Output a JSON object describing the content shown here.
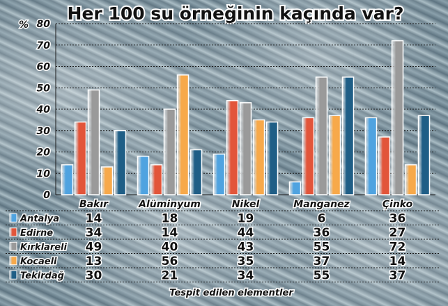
{
  "chart_data": {
    "type": "bar",
    "title": "Her 100 su örneğinin kaçında var?",
    "ylabel": "%",
    "xlabel": "Tespit edilen elementler",
    "ylim": [
      0,
      80
    ],
    "yticks": [
      "0",
      "10",
      "20",
      "30",
      "40",
      "50",
      "60",
      "70",
      "80"
    ],
    "grid": true,
    "categories": [
      "Bakır",
      "Alüminyum",
      "Nikel",
      "Manganez",
      "Çinko"
    ],
    "series": [
      {
        "name": "Antalya",
        "color": "#4fa3e0",
        "values": [
          14,
          18,
          19,
          6,
          36
        ]
      },
      {
        "name": "Edirne",
        "color": "#e2553a",
        "values": [
          34,
          14,
          44,
          36,
          27
        ]
      },
      {
        "name": "Kırklareli",
        "color": "#9a9a9a",
        "values": [
          49,
          40,
          43,
          55,
          72
        ]
      },
      {
        "name": "Kocaeli",
        "color": "#f7a94a",
        "values": [
          13,
          56,
          35,
          37,
          14
        ]
      },
      {
        "name": "Tekirdağ",
        "color": "#1f5e86",
        "values": [
          30,
          21,
          34,
          55,
          37
        ]
      }
    ]
  }
}
